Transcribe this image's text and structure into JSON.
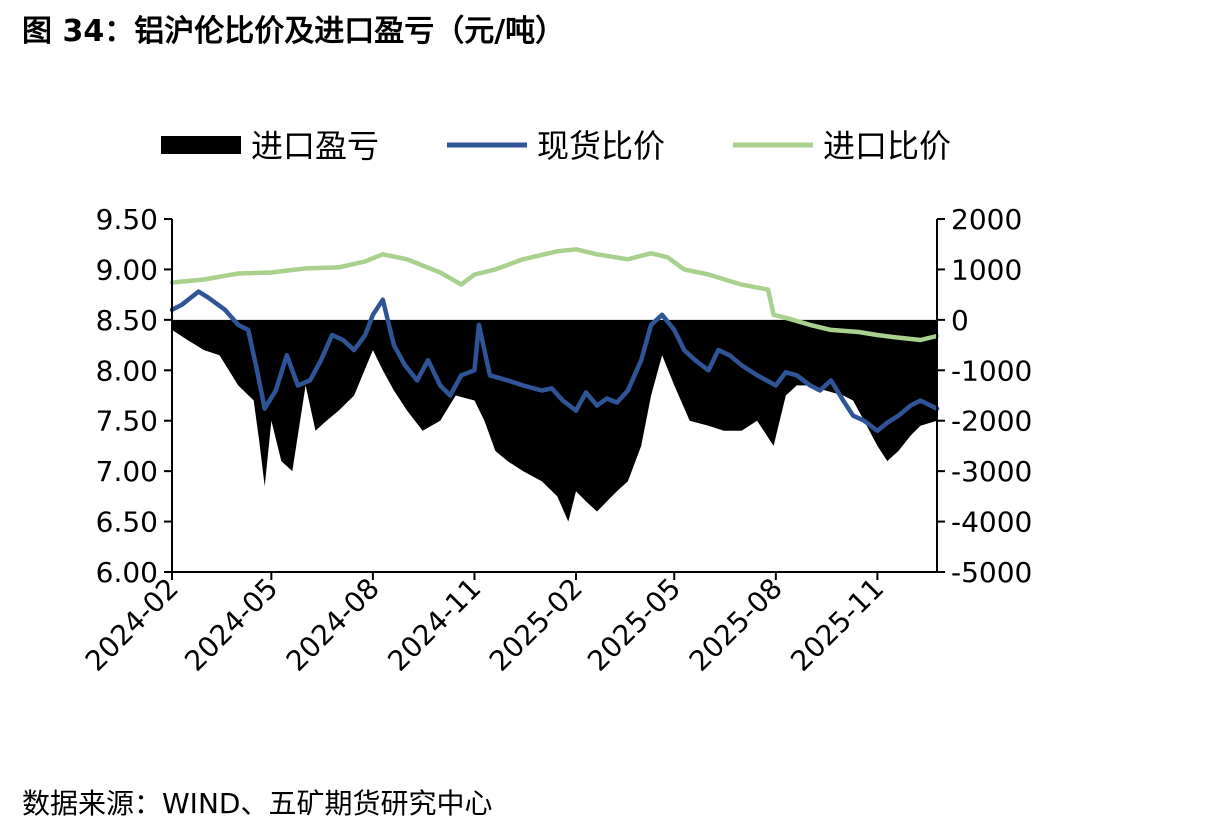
{
  "title": "图 34：铝沪伦比价及进口盈亏（元/吨）",
  "source": "数据来源：WIND、五矿期货研究中心",
  "colors": {
    "profit": "#000000",
    "spot": "#2F5597",
    "import": "#A9D18E"
  },
  "chart_data": {
    "type": "line+area",
    "legend_position": "top",
    "grid": false,
    "x_range": [
      "2024-02-01",
      "2025-12-25"
    ],
    "x_ticks": [
      "2024-02",
      "2024-05",
      "2024-08",
      "2024-11",
      "2025-02",
      "2025-05",
      "2025-08",
      "2025-11"
    ],
    "y_left": {
      "range": [
        6.0,
        9.5
      ],
      "ticks": [
        "9.50",
        "9.00",
        "8.50",
        "8.00",
        "7.50",
        "7.00",
        "6.50",
        "6.00"
      ]
    },
    "y_right": {
      "range": [
        -5000,
        2000
      ],
      "ticks": [
        "2000",
        "1000",
        "0",
        "-1000",
        "-2000",
        "-3000",
        "-4000",
        "-5000"
      ]
    },
    "series": [
      {
        "name": "进口盈亏",
        "type": "area",
        "axis": "right",
        "x": [
          "2024-02-01",
          "2024-02-15",
          "2024-03-01",
          "2024-03-15",
          "2024-04-01",
          "2024-04-15",
          "2024-04-20",
          "2024-04-25",
          "2024-05-01",
          "2024-05-10",
          "2024-05-20",
          "2024-06-01",
          "2024-06-10",
          "2024-06-20",
          "2024-07-01",
          "2024-07-15",
          "2024-08-01",
          "2024-08-10",
          "2024-08-20",
          "2024-09-01",
          "2024-09-15",
          "2024-10-01",
          "2024-10-15",
          "2024-11-01",
          "2024-11-10",
          "2024-11-20",
          "2024-12-01",
          "2024-12-15",
          "2025-01-01",
          "2025-01-15",
          "2025-01-25",
          "2025-02-01",
          "2025-02-10",
          "2025-02-20",
          "2025-03-01",
          "2025-03-10",
          "2025-03-20",
          "2025-04-01",
          "2025-04-10",
          "2025-04-20",
          "2025-05-01",
          "2025-05-15",
          "2025-06-01",
          "2025-06-15",
          "2025-07-01",
          "2025-07-15",
          "2025-07-30",
          "2025-08-10",
          "2025-08-20",
          "2025-09-01",
          "2025-09-15",
          "2025-10-01",
          "2025-10-10",
          "2025-10-20",
          "2025-11-01",
          "2025-11-10",
          "2025-11-20",
          "2025-12-01",
          "2025-12-10",
          "2025-12-25"
        ],
        "values": [
          -200,
          -400,
          -600,
          -700,
          -1300,
          -1600,
          -2400,
          -3300,
          -2000,
          -2800,
          -3000,
          -1300,
          -2200,
          -2000,
          -1800,
          -1500,
          -600,
          -1000,
          -1400,
          -1800,
          -2200,
          -2000,
          -1500,
          -1600,
          -2000,
          -2600,
          -2800,
          -3000,
          -3200,
          -3500,
          -4000,
          -3400,
          -3600,
          -3800,
          -3600,
          -3400,
          -3200,
          -2500,
          -1500,
          -700,
          -1300,
          -2000,
          -2100,
          -2200,
          -2200,
          -2000,
          -2500,
          -1500,
          -1300,
          -1300,
          -1400,
          -1500,
          -1600,
          -2000,
          -2500,
          -2800,
          -2600,
          -2300,
          -2100,
          -2000
        ]
      },
      {
        "name": "现货比价",
        "type": "line",
        "axis": "left",
        "x": [
          "2024-02-01",
          "2024-02-10",
          "2024-02-25",
          "2024-03-05",
          "2024-03-20",
          "2024-04-01",
          "2024-04-10",
          "2024-04-18",
          "2024-04-25",
          "2024-05-05",
          "2024-05-15",
          "2024-05-25",
          "2024-06-05",
          "2024-06-15",
          "2024-06-25",
          "2024-07-05",
          "2024-07-15",
          "2024-07-25",
          "2024-08-01",
          "2024-08-10",
          "2024-08-20",
          "2024-08-30",
          "2024-09-10",
          "2024-09-20",
          "2024-10-01",
          "2024-10-10",
          "2024-10-20",
          "2024-11-01",
          "2024-11-05",
          "2024-11-15",
          "2024-12-01",
          "2024-12-15",
          "2025-01-01",
          "2025-01-10",
          "2025-01-20",
          "2025-02-01",
          "2025-02-10",
          "2025-02-20",
          "2025-03-01",
          "2025-03-10",
          "2025-03-20",
          "2025-04-01",
          "2025-04-10",
          "2025-04-20",
          "2025-05-01",
          "2025-05-10",
          "2025-05-20",
          "2025-06-01",
          "2025-06-10",
          "2025-06-20",
          "2025-07-01",
          "2025-07-15",
          "2025-08-01",
          "2025-08-10",
          "2025-08-20",
          "2025-09-01",
          "2025-09-10",
          "2025-09-20",
          "2025-10-01",
          "2025-10-10",
          "2025-10-20",
          "2025-11-01",
          "2025-11-10",
          "2025-11-20",
          "2025-12-01",
          "2025-12-10",
          "2025-12-25"
        ],
        "values": [
          8.6,
          8.65,
          8.78,
          8.72,
          8.6,
          8.45,
          8.4,
          8.0,
          7.62,
          7.8,
          8.15,
          7.85,
          7.9,
          8.1,
          8.35,
          8.3,
          8.2,
          8.35,
          8.55,
          8.7,
          8.25,
          8.05,
          7.9,
          8.1,
          7.85,
          7.75,
          7.95,
          8.0,
          8.45,
          7.95,
          7.9,
          7.85,
          7.8,
          7.82,
          7.7,
          7.6,
          7.78,
          7.65,
          7.72,
          7.68,
          7.8,
          8.1,
          8.45,
          8.55,
          8.4,
          8.2,
          8.1,
          8.0,
          8.2,
          8.15,
          8.05,
          7.95,
          7.85,
          7.98,
          7.95,
          7.85,
          7.8,
          7.9,
          7.7,
          7.55,
          7.5,
          7.4,
          7.48,
          7.55,
          7.65,
          7.7,
          7.62
        ]
      },
      {
        "name": "进口比价",
        "type": "line",
        "axis": "left",
        "x": [
          "2024-02-01",
          "2024-03-01",
          "2024-04-01",
          "2024-05-01",
          "2024-06-01",
          "2024-07-01",
          "2024-07-25",
          "2024-08-10",
          "2024-09-01",
          "2024-10-01",
          "2024-10-20",
          "2024-11-01",
          "2024-11-20",
          "2024-12-15",
          "2025-01-15",
          "2025-02-01",
          "2025-02-20",
          "2025-03-20",
          "2025-04-10",
          "2025-04-25",
          "2025-05-10",
          "2025-06-01",
          "2025-07-01",
          "2025-07-25",
          "2025-07-30",
          "2025-08-10",
          "2025-09-01",
          "2025-09-20",
          "2025-10-15",
          "2025-11-01",
          "2025-11-15",
          "2025-12-10",
          "2025-12-25"
        ],
        "values": [
          8.87,
          8.9,
          8.96,
          8.97,
          9.01,
          9.02,
          9.08,
          9.15,
          9.1,
          8.97,
          8.85,
          8.95,
          9.0,
          9.1,
          9.18,
          9.2,
          9.15,
          9.1,
          9.16,
          9.12,
          9.0,
          8.95,
          8.85,
          8.8,
          8.55,
          8.52,
          8.45,
          8.4,
          8.38,
          8.35,
          8.33,
          8.3,
          8.34
        ]
      }
    ]
  }
}
